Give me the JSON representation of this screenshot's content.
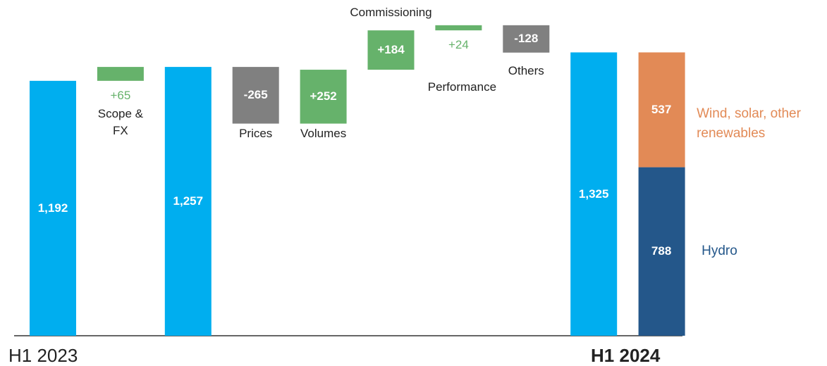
{
  "chart_data": {
    "type": "waterfall",
    "categories": [
      "H1 2023",
      "Scope & FX",
      null,
      "Prices",
      "Volumes",
      "Commissioning",
      "Performance",
      "Others",
      "H1 2024"
    ],
    "values": [
      1192,
      65,
      1257,
      -265,
      252,
      184,
      24,
      -128,
      1325
    ],
    "value_labels": [
      "1,192",
      "+65",
      "1,257",
      "-265",
      "+252",
      "+184",
      "+24",
      "-128",
      "1,325"
    ],
    "measure": [
      "absolute",
      "relative",
      "absolute",
      "relative",
      "relative",
      "relative",
      "relative",
      "relative",
      "absolute"
    ],
    "colors": {
      "absolute": "#00aeef",
      "increase": "#66b26b",
      "decrease": "#808080"
    },
    "ylim": [
      0,
      1570
    ],
    "stack": {
      "series": [
        {
          "name": "Hydro",
          "color": "#24578a",
          "values": [
            788
          ]
        },
        {
          "name": "Wind, solar, other renewables",
          "color": "#e28a56",
          "values": [
            537
          ]
        }
      ]
    }
  }
}
